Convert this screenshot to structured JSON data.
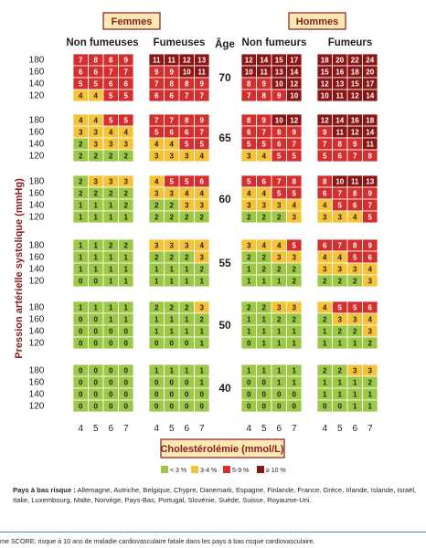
{
  "header": {
    "women_label": "Femmes",
    "men_label": "Hommes",
    "col_nonsmoke_f": "Non fumeuses",
    "col_smoke_f": "Fumeuses",
    "col_age": "Âge",
    "col_nonsmoke_m": "Non fumeurs",
    "col_smoke_m": "Fumeurs"
  },
  "y_axis_label": "Pression artérielle systolique (mmHg)",
  "x_axis_label": "Cholestérolémie (mmol/L)",
  "legend": [
    {
      "label": "< 3 %",
      "color": "#9dc846"
    },
    {
      "label": "3-4 %",
      "color": "#f6c338"
    },
    {
      "label": "5-9 %",
      "color": "#d32f2f"
    },
    {
      "label": "≥ 10 %",
      "color": "#8b1414"
    }
  ],
  "footnote": {
    "prefix": "Pays à bas risque :",
    "countries": "Allemagne, Autriche, Belgique, Chypre, Danemark, Espagne, Finlande, France, Grèce, Irlande, Islande, Israël, Italie, Luxembourg, Malte, Norvège, Pays-Bas, Portugal, Slovénie, Suède, Suisse, Royaume-Uni."
  },
  "caption": "me SCORE: risque à 10 ans de maladie cardiovasculaire fatale dans les pays à bas risque cardiovasculaire.",
  "chart_data": {
    "type": "heatmap",
    "x": [
      4,
      5,
      6,
      7
    ],
    "xlabel": "Cholestérolémie (mmol/L)",
    "y": [
      180,
      160,
      140,
      120
    ],
    "ylabel": "Pression artérielle systolique (mmHg)",
    "groups": [
      "Femmes Non fumeuses",
      "Femmes Fumeuses",
      "Hommes Non fumeurs",
      "Hommes Fumeurs"
    ],
    "ages": [
      70,
      65,
      60,
      55,
      50,
      40
    ],
    "values": {
      "70": [
        [
          [
            7,
            8,
            8,
            9
          ],
          [
            6,
            6,
            7,
            7
          ],
          [
            5,
            5,
            6,
            6
          ],
          [
            4,
            4,
            5,
            5
          ]
        ],
        [
          [
            11,
            11,
            12,
            13
          ],
          [
            9,
            9,
            10,
            11
          ],
          [
            7,
            8,
            8,
            9
          ],
          [
            6,
            6,
            7,
            7
          ]
        ],
        [
          [
            12,
            14,
            15,
            17
          ],
          [
            10,
            11,
            13,
            14
          ],
          [
            8,
            9,
            10,
            12
          ],
          [
            7,
            8,
            9,
            10
          ]
        ],
        [
          [
            18,
            20,
            22,
            24
          ],
          [
            15,
            16,
            18,
            20
          ],
          [
            12,
            13,
            15,
            17
          ],
          [
            10,
            11,
            12,
            14
          ]
        ]
      ],
      "65": [
        [
          [
            4,
            4,
            5,
            5
          ],
          [
            3,
            3,
            4,
            4
          ],
          [
            2,
            3,
            3,
            3
          ],
          [
            2,
            2,
            2,
            2
          ]
        ],
        [
          [
            7,
            7,
            8,
            9
          ],
          [
            5,
            6,
            6,
            7
          ],
          [
            4,
            4,
            5,
            5
          ],
          [
            3,
            3,
            3,
            4
          ]
        ],
        [
          [
            8,
            9,
            10,
            12
          ],
          [
            6,
            7,
            8,
            9
          ],
          [
            5,
            5,
            6,
            7
          ],
          [
            3,
            4,
            5,
            5
          ]
        ],
        [
          [
            12,
            14,
            16,
            18
          ],
          [
            9,
            11,
            12,
            14
          ],
          [
            7,
            8,
            9,
            11
          ],
          [
            5,
            6,
            7,
            8
          ]
        ]
      ],
      "60": [
        [
          [
            2,
            3,
            3,
            3
          ],
          [
            2,
            2,
            2,
            2
          ],
          [
            1,
            1,
            1,
            2
          ],
          [
            1,
            1,
            1,
            1
          ]
        ],
        [
          [
            4,
            5,
            5,
            6
          ],
          [
            3,
            3,
            4,
            4
          ],
          [
            2,
            2,
            3,
            3
          ],
          [
            2,
            2,
            2,
            2
          ]
        ],
        [
          [
            5,
            6,
            7,
            8
          ],
          [
            4,
            4,
            5,
            5
          ],
          [
            3,
            3,
            3,
            4
          ],
          [
            2,
            2,
            2,
            3
          ]
        ],
        [
          [
            8,
            10,
            11,
            13
          ],
          [
            6,
            7,
            8,
            9
          ],
          [
            4,
            5,
            6,
            7
          ],
          [
            3,
            3,
            4,
            5
          ]
        ]
      ],
      "55": [
        [
          [
            1,
            1,
            2,
            2
          ],
          [
            1,
            1,
            1,
            1
          ],
          [
            1,
            1,
            1,
            1
          ],
          [
            0,
            0,
            1,
            1
          ]
        ],
        [
          [
            3,
            3,
            3,
            4
          ],
          [
            2,
            2,
            2,
            3
          ],
          [
            1,
            1,
            1,
            2
          ],
          [
            1,
            1,
            1,
            1
          ]
        ],
        [
          [
            3,
            4,
            4,
            5
          ],
          [
            2,
            2,
            3,
            3
          ],
          [
            1,
            2,
            2,
            2
          ],
          [
            1,
            1,
            1,
            2
          ]
        ],
        [
          [
            6,
            7,
            8,
            9
          ],
          [
            4,
            4,
            5,
            6
          ],
          [
            3,
            3,
            3,
            4
          ],
          [
            2,
            2,
            2,
            3
          ]
        ]
      ],
      "50": [
        [
          [
            1,
            1,
            1,
            1
          ],
          [
            0,
            0,
            1,
            1
          ],
          [
            0,
            0,
            0,
            0
          ],
          [
            0,
            0,
            0,
            0
          ]
        ],
        [
          [
            2,
            2,
            2,
            3
          ],
          [
            1,
            1,
            1,
            2
          ],
          [
            1,
            1,
            1,
            1
          ],
          [
            0,
            0,
            0,
            1
          ]
        ],
        [
          [
            2,
            2,
            3,
            3
          ],
          [
            1,
            1,
            2,
            2
          ],
          [
            1,
            1,
            1,
            1
          ],
          [
            0,
            1,
            1,
            1
          ]
        ],
        [
          [
            4,
            5,
            5,
            6
          ],
          [
            2,
            3,
            3,
            4
          ],
          [
            1,
            2,
            2,
            3
          ],
          [
            1,
            1,
            1,
            2
          ]
        ]
      ],
      "40": [
        [
          [
            0,
            0,
            0,
            0
          ],
          [
            0,
            0,
            0,
            0
          ],
          [
            0,
            0,
            0,
            0
          ],
          [
            0,
            0,
            0,
            0
          ]
        ],
        [
          [
            1,
            1,
            1,
            1
          ],
          [
            0,
            0,
            0,
            1
          ],
          [
            0,
            0,
            0,
            0
          ],
          [
            0,
            0,
            0,
            0
          ]
        ],
        [
          [
            1,
            1,
            1,
            1
          ],
          [
            0,
            0,
            1,
            1
          ],
          [
            0,
            0,
            0,
            0
          ],
          [
            0,
            0,
            0,
            0
          ]
        ],
        [
          [
            2,
            2,
            3,
            3
          ],
          [
            1,
            1,
            1,
            2
          ],
          [
            1,
            1,
            1,
            1
          ],
          [
            0,
            0,
            1,
            1
          ]
        ]
      ]
    },
    "color_thresholds": [
      {
        "max": 2,
        "color": "#9dc846"
      },
      {
        "max": 4,
        "color": "#f6c338"
      },
      {
        "max": 9,
        "color": "#d32f2f"
      },
      {
        "max": 999,
        "color": "#8b1414"
      }
    ]
  }
}
